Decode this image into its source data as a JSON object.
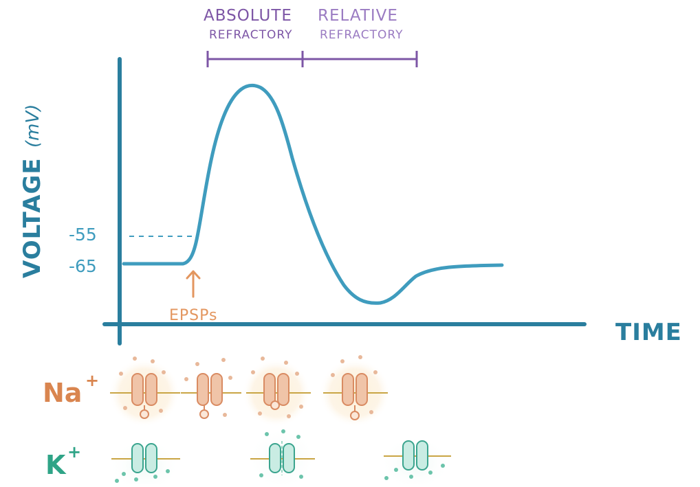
{
  "title": "",
  "axes": {
    "y_label": "VOLTAGE",
    "y_unit": "(mV)",
    "x_label": "TIME"
  },
  "ticks": {
    "threshold": "-55",
    "resting": "-65"
  },
  "annotation": {
    "epsps": "EPSPs"
  },
  "periods": {
    "absolute_line1": "ABSOLUTE",
    "absolute_line2": "REFRACTORY",
    "relative_line1": "RELATIVE",
    "relative_line2": "REFRACTORY"
  },
  "ions": {
    "sodium": "Na",
    "sodium_charge": "+",
    "potassium": "K",
    "potassium_charge": "+"
  },
  "colors": {
    "curve": "#3f9cbe",
    "axis": "#2a7e9e",
    "purple": "#7d56a6",
    "orange": "#e3965f",
    "na_channel": "#f0c4a8",
    "na_glow": "#fdf0d8",
    "k_channel": "#c9ece3",
    "membrane": "#c9a544"
  },
  "icons": {
    "na_channel": "sodium-channel-icon",
    "k_channel": "potassium-channel-icon",
    "arrow": "arrow-up-icon"
  }
}
